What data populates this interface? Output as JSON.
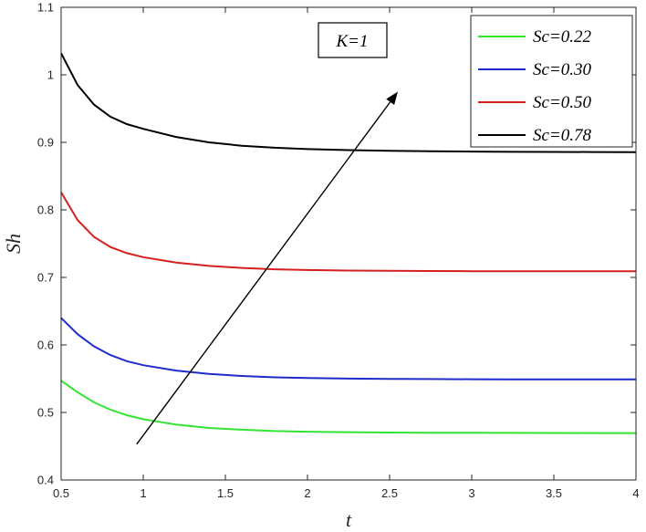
{
  "chart_data": {
    "type": "line",
    "xlabel": "t",
    "ylabel": "Sh",
    "xlim": [
      0.5,
      4
    ],
    "ylim": [
      0.4,
      1.1
    ],
    "xticks": [
      0.5,
      1,
      1.5,
      2,
      2.5,
      3,
      3.5,
      4
    ],
    "yticks": [
      0.4,
      0.5,
      0.6,
      0.7,
      0.8,
      0.9,
      1,
      1.1
    ],
    "xtick_labels": [
      "0.5",
      "1",
      "1.5",
      "2",
      "2.5",
      "3",
      "3.5",
      "4"
    ],
    "ytick_labels": [
      "0.4",
      "0.5",
      "0.6",
      "0.7",
      "0.8",
      "0.9",
      "1",
      "1.1"
    ],
    "grid": false,
    "legend_position": "top-right",
    "annotation": "K=1",
    "arrow": {
      "from": [
        0.96,
        0.453
      ],
      "to": [
        2.55,
        0.975
      ]
    },
    "series": [
      {
        "name": "Sc=0.22",
        "color": "#33e533",
        "x": [
          0.5,
          0.6,
          0.7,
          0.8,
          0.9,
          1.0,
          1.2,
          1.4,
          1.6,
          1.8,
          2.0,
          2.25,
          2.5,
          2.75,
          3.0,
          3.25,
          3.5,
          3.75,
          4.0
        ],
        "y": [
          0.547,
          0.53,
          0.515,
          0.504,
          0.496,
          0.49,
          0.482,
          0.477,
          0.4745,
          0.4725,
          0.4715,
          0.4708,
          0.4703,
          0.47,
          0.4698,
          0.4697,
          0.4696,
          0.4695,
          0.4695
        ]
      },
      {
        "name": "Sc=0.30",
        "color": "#1f2ccc",
        "x": [
          0.5,
          0.6,
          0.7,
          0.8,
          0.9,
          1.0,
          1.2,
          1.4,
          1.6,
          1.8,
          2.0,
          2.25,
          2.5,
          2.75,
          3.0,
          3.25,
          3.5,
          3.75,
          4.0
        ],
        "y": [
          0.64,
          0.616,
          0.598,
          0.585,
          0.576,
          0.57,
          0.562,
          0.557,
          0.554,
          0.552,
          0.551,
          0.5502,
          0.5497,
          0.5494,
          0.5492,
          0.5491,
          0.549,
          0.549,
          0.549
        ]
      },
      {
        "name": "Sc=0.50",
        "color": "#d62020",
        "x": [
          0.5,
          0.6,
          0.7,
          0.8,
          0.9,
          1.0,
          1.2,
          1.4,
          1.6,
          1.8,
          2.0,
          2.25,
          2.5,
          2.75,
          3.0,
          3.25,
          3.5,
          3.75,
          4.0
        ],
        "y": [
          0.826,
          0.785,
          0.76,
          0.745,
          0.736,
          0.73,
          0.722,
          0.717,
          0.714,
          0.712,
          0.711,
          0.7102,
          0.7097,
          0.7094,
          0.7092,
          0.7091,
          0.709,
          0.709,
          0.709
        ]
      },
      {
        "name": "Sc=0.78",
        "color": "#000000",
        "x": [
          0.5,
          0.6,
          0.7,
          0.8,
          0.9,
          1.0,
          1.2,
          1.4,
          1.6,
          1.8,
          2.0,
          2.25,
          2.5,
          2.75,
          3.0,
          3.25,
          3.5,
          3.75,
          4.0
        ],
        "y": [
          1.032,
          0.985,
          0.956,
          0.938,
          0.927,
          0.92,
          0.908,
          0.9,
          0.895,
          0.892,
          0.89,
          0.8885,
          0.8875,
          0.8868,
          0.8863,
          0.886,
          0.8858,
          0.8857,
          0.8856
        ]
      }
    ]
  }
}
